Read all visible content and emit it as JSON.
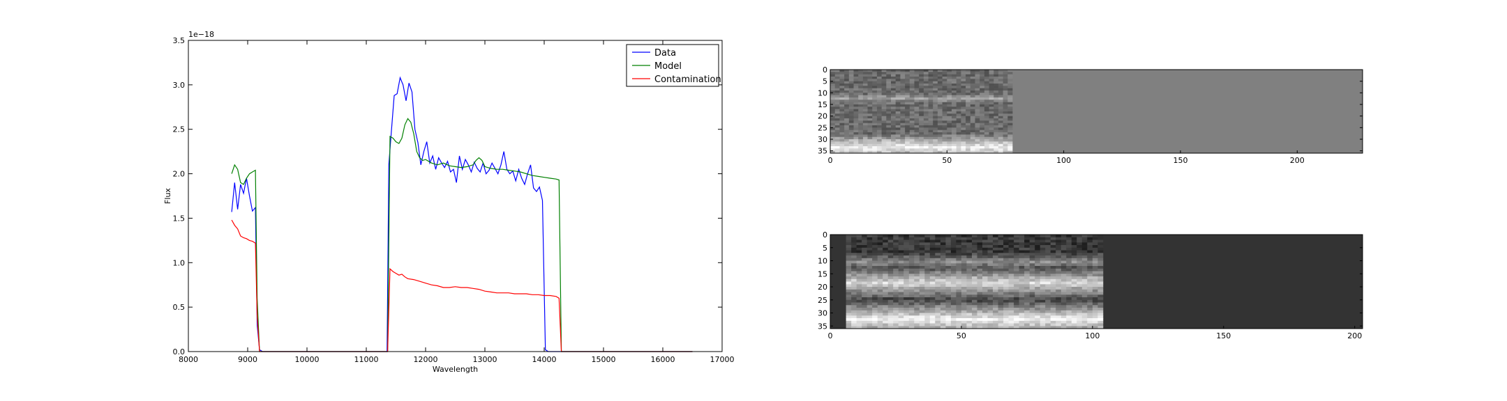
{
  "chart_data": [
    {
      "type": "line",
      "title": "",
      "xlabel": "Wavelength",
      "ylabel": "Flux",
      "offset_text": "1e−18",
      "xlim": [
        8000,
        17000
      ],
      "ylim": [
        0.0,
        3.5
      ],
      "x_ticks": [
        8000,
        9000,
        10000,
        11000,
        12000,
        13000,
        14000,
        15000,
        16000,
        17000
      ],
      "x_tick_labels": [
        "8000",
        "9000",
        "10000",
        "11000",
        "12000",
        "13000",
        "14000",
        "15000",
        "16000",
        "17000"
      ],
      "y_ticks": [
        0.0,
        0.5,
        1.0,
        1.5,
        2.0,
        2.5,
        3.0,
        3.5
      ],
      "y_tick_labels": [
        "0.0",
        "0.5",
        "1.0",
        "1.5",
        "2.0",
        "2.5",
        "3.0",
        "3.5"
      ],
      "grid": false,
      "legend": "top-right",
      "series": [
        {
          "name": "Data",
          "color": "#0000ff",
          "x": [
            8730,
            8780,
            8830,
            8880,
            8930,
            8980,
            9030,
            9080,
            9130,
            9160,
            9200,
            9250,
            11350,
            11380,
            11420,
            11470,
            11520,
            11570,
            11620,
            11670,
            11720,
            11770,
            11820,
            11870,
            11920,
            11970,
            12020,
            12070,
            12120,
            12170,
            12220,
            12270,
            12320,
            12370,
            12420,
            12470,
            12520,
            12570,
            12620,
            12670,
            12720,
            12770,
            12820,
            12870,
            12920,
            12970,
            13020,
            13070,
            13120,
            13170,
            13220,
            13270,
            13320,
            13370,
            13420,
            13470,
            13520,
            13570,
            13620,
            13670,
            13720,
            13770,
            13820,
            13870,
            13920,
            13970,
            14020,
            14070,
            14120,
            14170,
            14220,
            14270,
            14300,
            16500
          ],
          "y": [
            1.57,
            1.9,
            1.6,
            1.88,
            1.78,
            1.95,
            1.75,
            1.58,
            1.62,
            0.3,
            0.02,
            0.0,
            0.0,
            2.1,
            2.45,
            2.88,
            2.9,
            3.08,
            3.0,
            2.82,
            3.02,
            2.92,
            2.5,
            2.35,
            2.1,
            2.25,
            2.36,
            2.12,
            2.2,
            2.05,
            2.18,
            2.12,
            2.07,
            2.14,
            2.02,
            2.05,
            1.9,
            2.2,
            2.05,
            2.16,
            2.1,
            2.02,
            2.13,
            2.06,
            2.02,
            2.12,
            2.0,
            2.04,
            2.12,
            2.06,
            2.0,
            2.1,
            2.25,
            2.05,
            2.0,
            2.03,
            1.92,
            2.05,
            1.95,
            1.88,
            2.0,
            2.1,
            1.84,
            1.8,
            1.85,
            1.7,
            0.02,
            0.0,
            0.0,
            0.0,
            0.0,
            0.0,
            0.0,
            0.0
          ]
        },
        {
          "name": "Model",
          "color": "#008000",
          "x": [
            8730,
            8780,
            8830,
            8880,
            8930,
            8980,
            9030,
            9080,
            9130,
            9160,
            9200,
            9250,
            11360,
            11400,
            11450,
            11500,
            11550,
            11600,
            11650,
            11700,
            11750,
            11800,
            11850,
            11900,
            11950,
            12000,
            12100,
            12200,
            12300,
            12400,
            12500,
            12600,
            12700,
            12800,
            12850,
            12900,
            12950,
            13000,
            13100,
            13200,
            13300,
            13400,
            13500,
            13600,
            13700,
            13800,
            13900,
            14000,
            14100,
            14200,
            14250,
            14290,
            16500
          ],
          "y": [
            2.0,
            2.1,
            2.05,
            1.9,
            1.88,
            1.95,
            2.0,
            2.02,
            2.04,
            0.6,
            0.0,
            0.0,
            0.0,
            2.42,
            2.4,
            2.36,
            2.34,
            2.4,
            2.55,
            2.62,
            2.58,
            2.45,
            2.25,
            2.18,
            2.15,
            2.16,
            2.12,
            2.1,
            2.12,
            2.09,
            2.08,
            2.07,
            2.08,
            2.1,
            2.15,
            2.18,
            2.15,
            2.08,
            2.06,
            2.05,
            2.05,
            2.04,
            2.03,
            2.02,
            2.0,
            1.98,
            1.97,
            1.96,
            1.95,
            1.94,
            1.93,
            0.0,
            0.0
          ]
        },
        {
          "name": "Contamination",
          "color": "#ff0000",
          "x": [
            8730,
            8780,
            8830,
            8880,
            8930,
            8980,
            9030,
            9080,
            9130,
            9160,
            9200,
            9250,
            11360,
            11400,
            11450,
            11500,
            11550,
            11600,
            11650,
            11700,
            11800,
            11900,
            12000,
            12100,
            12200,
            12300,
            12400,
            12500,
            12600,
            12700,
            12800,
            12900,
            13000,
            13100,
            13200,
            13300,
            13400,
            13500,
            13600,
            13700,
            13800,
            13900,
            14000,
            14100,
            14200,
            14250,
            14290,
            16500
          ],
          "y": [
            1.48,
            1.42,
            1.38,
            1.3,
            1.28,
            1.27,
            1.25,
            1.24,
            1.22,
            0.4,
            0.0,
            0.0,
            0.0,
            0.93,
            0.9,
            0.88,
            0.86,
            0.87,
            0.84,
            0.82,
            0.81,
            0.79,
            0.77,
            0.75,
            0.74,
            0.72,
            0.72,
            0.73,
            0.72,
            0.72,
            0.71,
            0.7,
            0.68,
            0.67,
            0.66,
            0.66,
            0.66,
            0.65,
            0.65,
            0.65,
            0.64,
            0.64,
            0.63,
            0.63,
            0.62,
            0.6,
            0.0,
            0.0
          ]
        }
      ]
    },
    {
      "type": "heatmap",
      "title": "",
      "colormap": "grayscale",
      "xlim": [
        0,
        228
      ],
      "ylim": [
        36,
        0
      ],
      "x_ticks": [
        0,
        50,
        100,
        150,
        200
      ],
      "x_tick_labels": [
        "0",
        "50",
        "100",
        "150",
        "200"
      ],
      "y_ticks": [
        0,
        5,
        10,
        15,
        20,
        25,
        30,
        35
      ],
      "y_tick_labels": [
        "0",
        "5",
        "10",
        "15",
        "20",
        "25",
        "30",
        "35"
      ],
      "signal_x_range": [
        0,
        77
      ],
      "fill_level": 0.42,
      "bright_rows": [
        {
          "row": 12,
          "level": 0.62
        },
        {
          "row": 33,
          "level": 0.95
        }
      ],
      "background_level": 0.5
    },
    {
      "type": "heatmap",
      "title": "",
      "colormap": "grayscale",
      "xlim": [
        0,
        203
      ],
      "ylim": [
        36,
        0
      ],
      "x_ticks": [
        0,
        50,
        100,
        150,
        200
      ],
      "x_tick_labels": [
        "0",
        "50",
        "100",
        "150",
        "200"
      ],
      "y_ticks": [
        0,
        5,
        10,
        15,
        20,
        25,
        30,
        35
      ],
      "y_tick_labels": [
        "0",
        "5",
        "10",
        "15",
        "20",
        "25",
        "30",
        "35"
      ],
      "signal_x_range": [
        6,
        104
      ],
      "fill_level": 0.22,
      "bright_rows": [
        {
          "row": 10,
          "level": 0.55
        },
        {
          "row": 18,
          "level": 0.85
        },
        {
          "row": 32,
          "level": 0.95
        }
      ],
      "background_level": 0.2
    }
  ]
}
